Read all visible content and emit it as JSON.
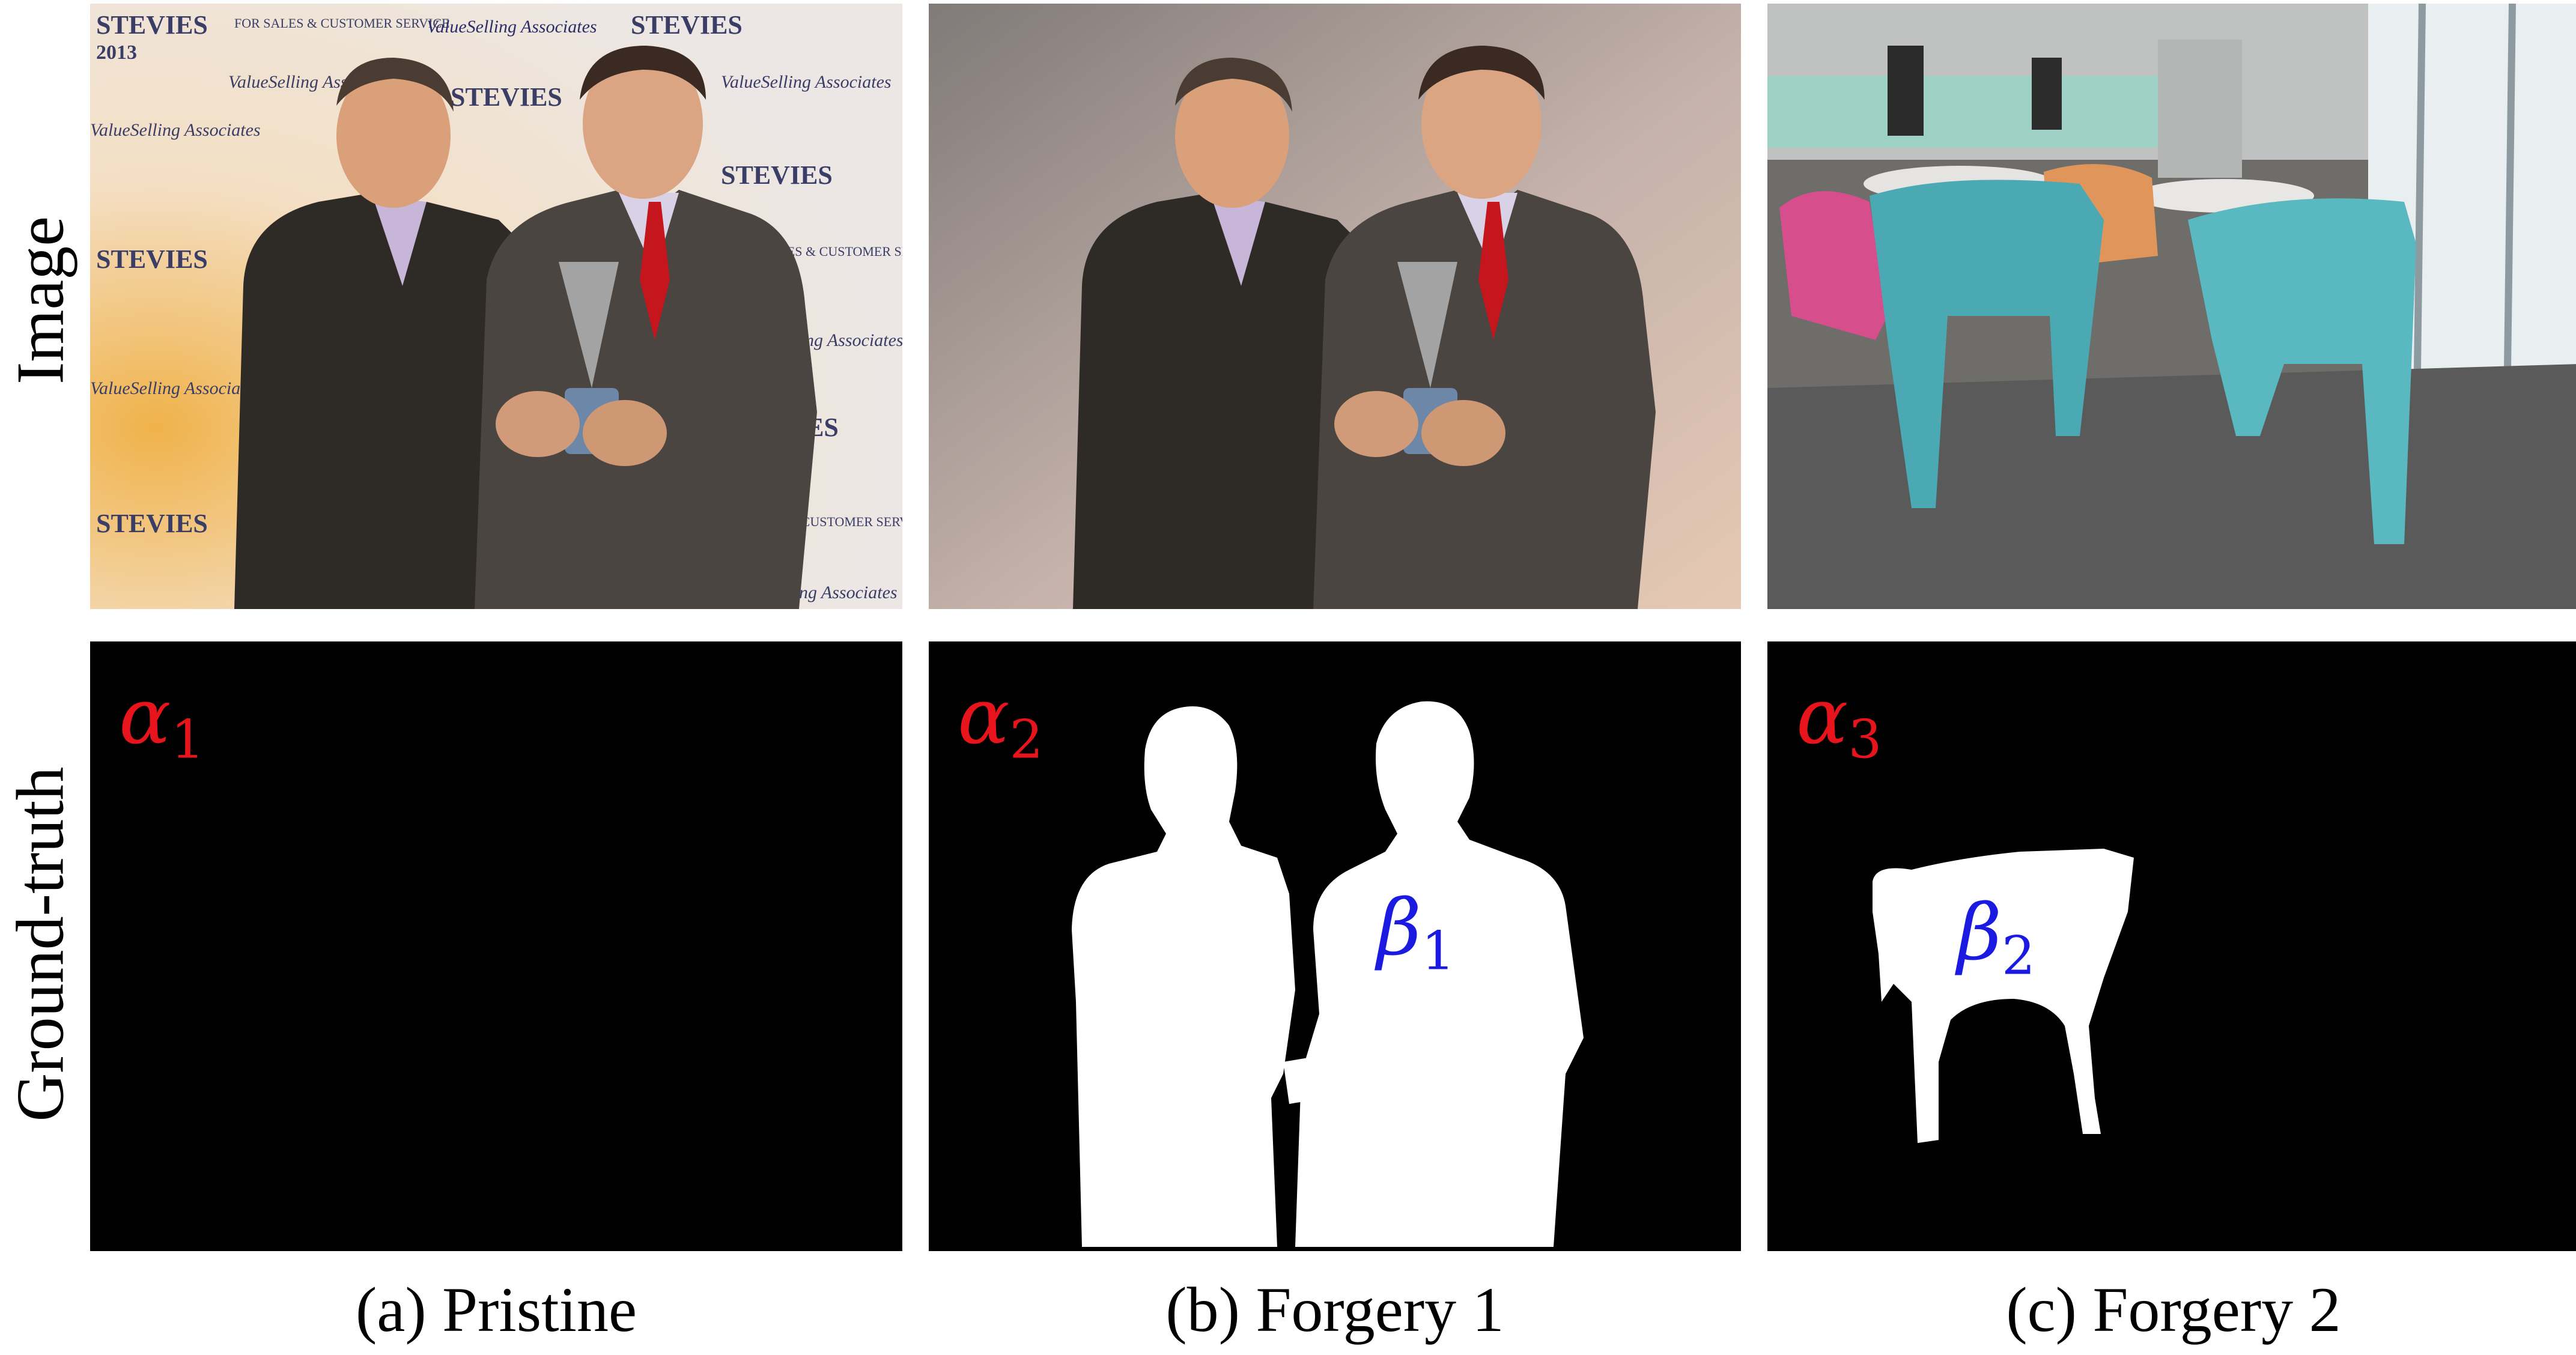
{
  "row_labels": {
    "image": "Image",
    "ground_truth": "Ground-truth"
  },
  "captions": {
    "a": "(a) Pristine",
    "b": "(b) Forgery 1",
    "c": "(c) Forgery 2"
  },
  "annotations": {
    "alpha1": {
      "symbol": "α",
      "sub": "1"
    },
    "alpha2": {
      "symbol": "α",
      "sub": "2"
    },
    "alpha3": {
      "symbol": "α",
      "sub": "3"
    },
    "beta1": {
      "symbol": "β",
      "sub": "1"
    },
    "beta2": {
      "symbol": "β",
      "sub": "2"
    }
  },
  "backdrop": {
    "logo": "ValueSelling Associates",
    "tagline": "FOR SALES & CUSTOMER SERVICE",
    "award": "STEVIES",
    "year": "2013"
  },
  "colors": {
    "alpha": "#e8141c",
    "beta": "#1a1ae0",
    "mask_bg": "#000000",
    "mask_fg": "#ffffff"
  }
}
